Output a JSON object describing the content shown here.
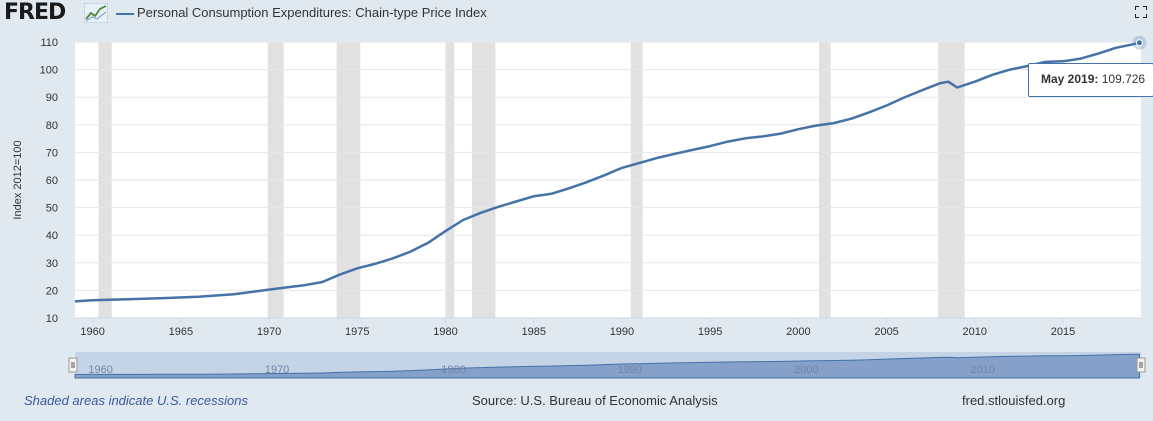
{
  "header": {
    "logo_text": "FRED",
    "series_title": "Personal Consumption Expenditures: Chain-type Price Index",
    "logo_icon": "fred-graph-icon",
    "fullscreen_icon": "fullscreen-icon"
  },
  "chart_data": {
    "type": "line",
    "title": "Personal Consumption Expenditures: Chain-type Price Index",
    "xlabel": "",
    "ylabel": "Index 2012=100",
    "xlim": [
      1959.0,
      2019.42
    ],
    "ylim": [
      10,
      110
    ],
    "x_ticks": [
      1960,
      1965,
      1970,
      1975,
      1980,
      1985,
      1990,
      1995,
      2000,
      2005,
      2010,
      2015
    ],
    "x_tick_labels": [
      "1960",
      "1965",
      "1970",
      "1975",
      "1980",
      "1985",
      "1990",
      "1995",
      "2000",
      "2005",
      "2010",
      "2015"
    ],
    "y_ticks": [
      10,
      20,
      30,
      40,
      50,
      60,
      70,
      80,
      90,
      100,
      110
    ],
    "y_tick_labels": [
      "10",
      "20",
      "30",
      "40",
      "50",
      "60",
      "70",
      "80",
      "90",
      "100",
      "110"
    ],
    "series": [
      {
        "name": "Personal Consumption Expenditures: Chain-type Price Index",
        "color": "#4572a7",
        "x": [
          1959.0,
          1960.0,
          1962.0,
          1964.0,
          1966.0,
          1968.0,
          1970.0,
          1971.0,
          1972.0,
          1973.0,
          1974.0,
          1975.0,
          1976.0,
          1977.0,
          1978.0,
          1979.0,
          1980.0,
          1981.0,
          1982.0,
          1983.0,
          1984.0,
          1985.0,
          1986.0,
          1987.0,
          1988.0,
          1989.0,
          1990.0,
          1991.0,
          1992.0,
          1993.0,
          1994.0,
          1995.0,
          1996.0,
          1997.0,
          1998.0,
          1999.0,
          2000.0,
          2001.0,
          2002.0,
          2003.0,
          2004.0,
          2005.0,
          2006.0,
          2007.0,
          2008.0,
          2008.5,
          2009.0,
          2010.0,
          2011.0,
          2012.0,
          2013.0,
          2014.0,
          2015.0,
          2016.0,
          2017.0,
          2018.0,
          2019.0,
          2019.33
        ],
        "values": [
          16.0,
          16.4,
          16.8,
          17.2,
          17.7,
          18.6,
          20.3,
          21.1,
          21.9,
          23.0,
          25.7,
          28.0,
          29.6,
          31.6,
          34.0,
          37.2,
          41.5,
          45.5,
          48.1,
          50.3,
          52.2,
          54.1,
          55.0,
          57.0,
          59.2,
          61.7,
          64.4,
          66.2,
          68.0,
          69.5,
          70.9,
          72.3,
          73.9,
          75.1,
          75.8,
          76.8,
          78.4,
          79.7,
          80.6,
          82.2,
          84.5,
          87.0,
          89.9,
          92.5,
          95.0,
          95.6,
          93.5,
          95.6,
          98.1,
          100.0,
          101.3,
          102.8,
          103.0,
          104.0,
          105.8,
          107.9,
          109.2,
          109.726
        ]
      }
    ],
    "recessions": [
      [
        1960.33,
        1961.08
      ],
      [
        1969.92,
        1970.83
      ],
      [
        1973.83,
        1975.17
      ],
      [
        1980.0,
        1980.5
      ],
      [
        1981.5,
        1982.83
      ],
      [
        1990.5,
        1991.17
      ],
      [
        2001.17,
        2001.83
      ],
      [
        2007.92,
        2009.42
      ]
    ],
    "navigator_labels": [
      "1960",
      "1970",
      "1980",
      "1990",
      "2000",
      "2010"
    ],
    "navigator_label_years": [
      1960,
      1970,
      1980,
      1990,
      2000,
      2010
    ]
  },
  "tooltip": {
    "date": "May 2019:",
    "value": "109.726"
  },
  "footer": {
    "recession_note": "Shaded areas indicate U.S. recessions",
    "source": "Source: U.S. Bureau of Economic Analysis",
    "site": "fred.stlouisfed.org"
  }
}
